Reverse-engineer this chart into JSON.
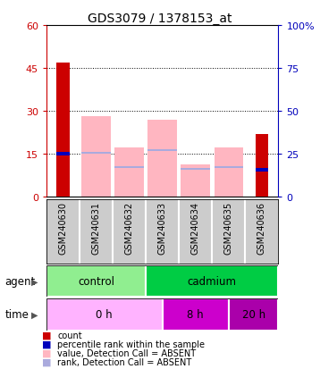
{
  "title": "GDS3079 / 1378153_at",
  "samples": [
    "GSM240630",
    "GSM240631",
    "GSM240632",
    "GSM240633",
    "GSM240634",
    "GSM240635",
    "GSM240636"
  ],
  "count_values": [
    47,
    0,
    0,
    0,
    0,
    0,
    22
  ],
  "percentile_rank": [
    25,
    0,
    0,
    0,
    0,
    0,
    16
  ],
  "value_absent": [
    0,
    47,
    29,
    45,
    19,
    29,
    0
  ],
  "rank_absent_bottom": [
    0,
    25,
    17,
    27,
    16,
    17,
    0
  ],
  "rank_absent_top": [
    0,
    26,
    18,
    28,
    17,
    18,
    0
  ],
  "ylim_left": [
    0,
    60
  ],
  "ylim_right": [
    0,
    100
  ],
  "yticks_left": [
    0,
    15,
    30,
    45,
    60
  ],
  "yticks_right": [
    0,
    25,
    50,
    75,
    100
  ],
  "bar_width": 0.55,
  "color_count": "#CC0000",
  "color_percentile": "#0000BB",
  "color_value_absent": "#FFB6C1",
  "color_rank_absent": "#AAAADD",
  "color_control": "#90EE90",
  "color_cadmium": "#00CC44",
  "color_time_0h": "#FFB3FF",
  "color_time_8h": "#CC00CC",
  "color_time_20h": "#AA00AA",
  "color_bg_gsm": "#CCCCCC",
  "ylabel_left_color": "#CC0000",
  "ylabel_right_color": "#0000BB",
  "legend_items": [
    {
      "color": "#CC0000",
      "label": "count"
    },
    {
      "color": "#0000BB",
      "label": "percentile rank within the sample"
    },
    {
      "color": "#FFB6C1",
      "label": "value, Detection Call = ABSENT"
    },
    {
      "color": "#AAAADD",
      "label": "rank, Detection Call = ABSENT"
    }
  ]
}
